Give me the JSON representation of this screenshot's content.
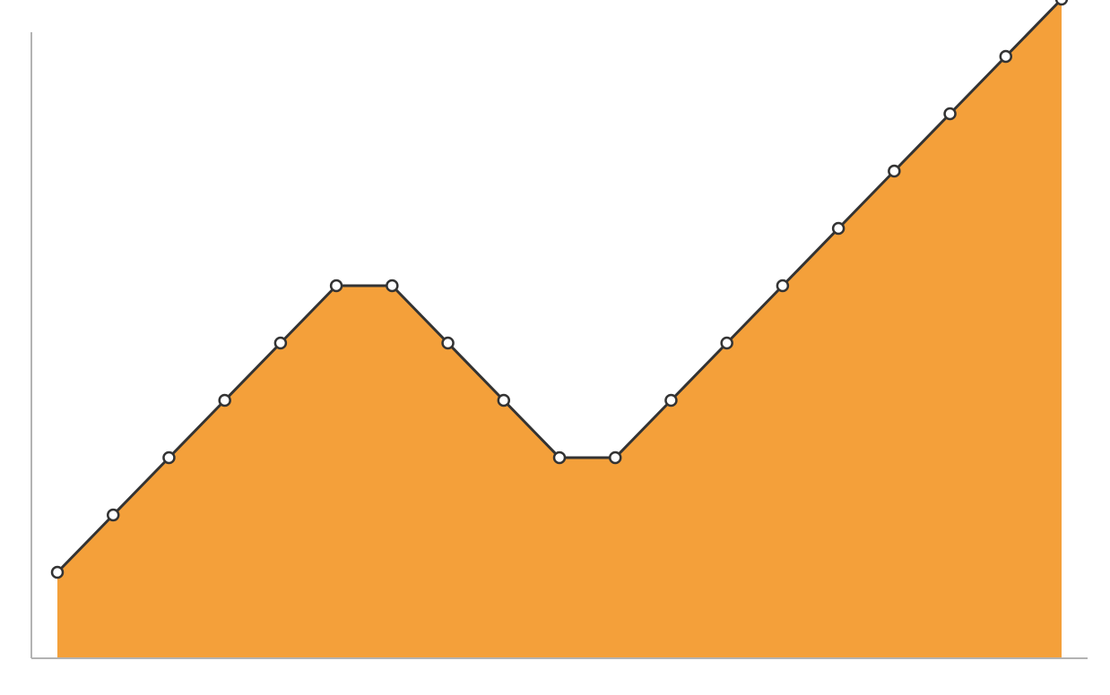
{
  "chart_data": {
    "type": "area",
    "title": "",
    "xlabel": "",
    "ylabel": "",
    "x": [
      0,
      1,
      2,
      3,
      4,
      5,
      6,
      7,
      8,
      9,
      10,
      11,
      12,
      13,
      14,
      15,
      16,
      17,
      18
    ],
    "ylim": [
      0,
      11
    ],
    "grid": false,
    "legend": "none",
    "series": [
      {
        "values": [
          1.5,
          2.5,
          3.5,
          4.5,
          5.5,
          6.5,
          6.5,
          5.5,
          4.5,
          3.5,
          3.5,
          4.5,
          5.5,
          6.5,
          7.5,
          8.5,
          9.5,
          10.5,
          11.5
        ]
      }
    ],
    "colors": {
      "area_fill": "#F4A03A",
      "line": "#333333",
      "marker_fill": "#ffffff",
      "marker_stroke": "#333333",
      "axis": "#b3b3b3"
    }
  }
}
